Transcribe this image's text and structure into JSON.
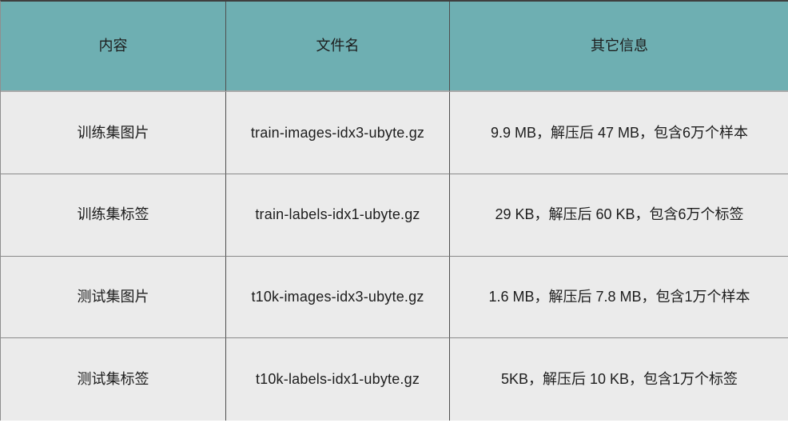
{
  "chart_data": {
    "type": "table",
    "columns": [
      "内容",
      "文件名",
      "其它信息"
    ],
    "rows": [
      [
        "训练集图片",
        "train-images-idx3-ubyte.gz",
        "9.9 MB，解压后 47 MB，包含6万个样本"
      ],
      [
        "训练集标签",
        "train-labels-idx1-ubyte.gz",
        "29 KB，解压后 60 KB，包含6万个标签"
      ],
      [
        "测试集图片",
        "t10k-images-idx3-ubyte.gz",
        "1.6 MB，解压后 7.8 MB，包含1万个样本"
      ],
      [
        "测试集标签",
        "t10k-labels-idx1-ubyte.gz",
        "5KB，解压后 10 KB，包含1万个标签"
      ]
    ]
  },
  "table": {
    "header": {
      "content": "内容",
      "filename": "文件名",
      "info": "其它信息"
    },
    "rows": [
      {
        "content": "训练集图片",
        "filename": "train-images-idx3-ubyte.gz",
        "info": "9.9 MB，解压后 47 MB，包含6万个样本"
      },
      {
        "content": "训练集标签",
        "filename": "train-labels-idx1-ubyte.gz",
        "info": "29 KB，解压后 60 KB，包含6万个标签"
      },
      {
        "content": "测试集图片",
        "filename": "t10k-images-idx3-ubyte.gz",
        "info": "1.6 MB，解压后 7.8 MB，包含1万个样本"
      },
      {
        "content": "测试集标签",
        "filename": "t10k-labels-idx1-ubyte.gz",
        "info": "5KB，解压后 10 KB，包含1万个标签"
      }
    ],
    "colors": {
      "header_bg": "#6eafb2",
      "body_bg": "#ebebeb",
      "text": "#1d1d1d",
      "grid_dark": "#4f4f4f",
      "grid_light": "#8a8a8a"
    }
  }
}
